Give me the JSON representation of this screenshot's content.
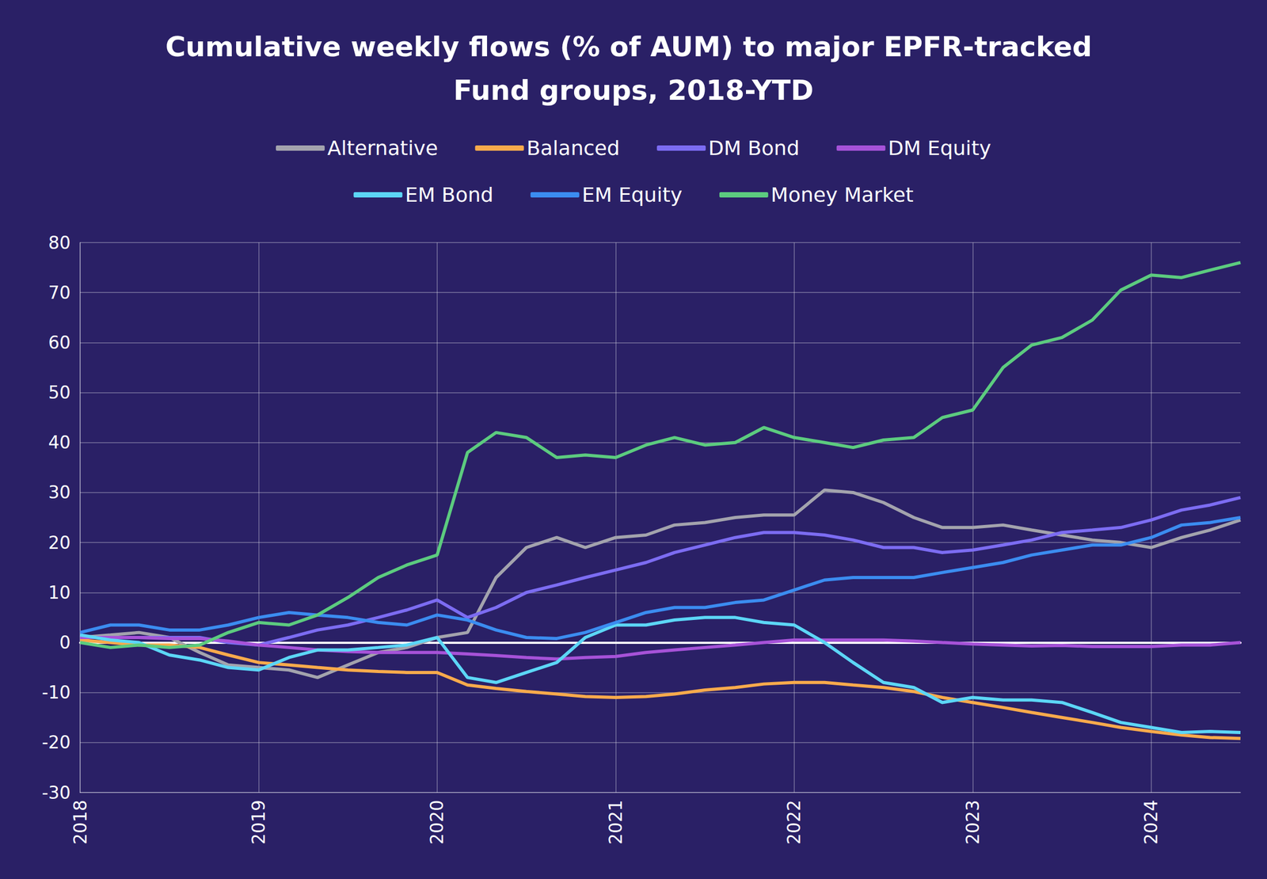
{
  "chart_data": {
    "type": "line",
    "title": "Cumulative weekly flows (% of AUM) to major EPFR-tracked Fund groups, 2018-YTD",
    "x": [
      2018,
      2018.17,
      2018.33,
      2018.5,
      2018.67,
      2018.83,
      2019,
      2019.17,
      2019.33,
      2019.5,
      2019.67,
      2019.83,
      2020,
      2020.17,
      2020.33,
      2020.5,
      2020.67,
      2020.83,
      2021,
      2021.17,
      2021.33,
      2021.5,
      2021.67,
      2021.83,
      2022,
      2022.17,
      2022.33,
      2022.5,
      2022.67,
      2022.83,
      2023,
      2023.17,
      2023.33,
      2023.5,
      2023.67,
      2023.83,
      2024,
      2024.17,
      2024.33,
      2024.5
    ],
    "xlim": [
      2018,
      2024.5
    ],
    "xticks": [
      2018,
      2019,
      2020,
      2021,
      2022,
      2023,
      2024
    ],
    "ylim": [
      -30,
      80
    ],
    "yticks": [
      -30,
      -20,
      -10,
      0,
      10,
      20,
      30,
      40,
      50,
      60,
      70,
      80
    ],
    "grid": true,
    "legend": "top",
    "series": [
      {
        "name": "Alternative",
        "color": "#a3a3ad",
        "values": [
          1,
          1.5,
          2,
          1,
          -2,
          -4.5,
          -5,
          -5.5,
          -7,
          -4.5,
          -2,
          -1,
          1,
          2,
          13,
          19,
          21,
          19,
          21,
          21.5,
          23.5,
          24,
          25,
          25.5,
          25.5,
          30.5,
          30,
          28,
          25,
          23,
          23,
          23.5,
          22.5,
          21.5,
          20.5,
          20,
          19,
          21,
          22.5,
          24.5
        ]
      },
      {
        "name": "Balanced",
        "color": "#f8aa4c",
        "values": [
          0.5,
          0,
          -0.5,
          -0.5,
          -1,
          -2.5,
          -4,
          -4.5,
          -5,
          -5.5,
          -5.8,
          -6,
          -6,
          -8.5,
          -9.2,
          -9.8,
          -10.3,
          -10.8,
          -11,
          -10.8,
          -10.3,
          -9.5,
          -9,
          -8.3,
          -8,
          -8,
          -8.5,
          -9,
          -9.8,
          -11,
          -12,
          -13,
          -14,
          -15,
          -16,
          -17,
          -17.8,
          -18.5,
          -19,
          -19.2
        ]
      },
      {
        "name": "DM Bond",
        "color": "#7c6cf2",
        "values": [
          1,
          1,
          1,
          1,
          1,
          0,
          -0.5,
          1,
          2.5,
          3.5,
          5,
          6.5,
          8.5,
          5,
          7,
          10,
          11.5,
          13,
          14.5,
          16,
          18,
          19.5,
          21,
          22,
          22,
          21.5,
          20.5,
          19,
          19,
          18,
          18.5,
          19.5,
          20.5,
          22,
          22.5,
          23,
          24.5,
          26.5,
          27.5,
          29
        ]
      },
      {
        "name": "DM Equity",
        "color": "#a652d8",
        "values": [
          1,
          1,
          1,
          0.8,
          0.8,
          0.3,
          -0.5,
          -1,
          -1.5,
          -1.8,
          -2,
          -2,
          -2,
          -2.3,
          -2.6,
          -3,
          -3.3,
          -3,
          -2.8,
          -2,
          -1.5,
          -1,
          -0.5,
          0,
          0.5,
          0.5,
          0.5,
          0.5,
          0.3,
          0,
          -0.3,
          -0.5,
          -0.7,
          -0.6,
          -0.8,
          -0.8,
          -0.8,
          -0.5,
          -0.5,
          0
        ]
      },
      {
        "name": "EM Bond",
        "color": "#5cd6f6",
        "values": [
          1.5,
          0.5,
          0,
          -2.5,
          -3.5,
          -5,
          -5.5,
          -3,
          -1.5,
          -1.5,
          -1,
          -0.5,
          1,
          -7,
          -8,
          -6,
          -4,
          1,
          3.5,
          3.5,
          4.5,
          5,
          5,
          4,
          3.5,
          0,
          -4,
          -8,
          -9,
          -12,
          -11,
          -11.5,
          -11.5,
          -12,
          -14,
          -16,
          -17,
          -18,
          -17.8,
          -18
        ]
      },
      {
        "name": "EM Equity",
        "color": "#3b8cf0",
        "values": [
          2,
          3.5,
          3.5,
          2.5,
          2.5,
          3.5,
          5,
          6,
          5.5,
          5,
          4,
          3.5,
          5.5,
          4.5,
          2.5,
          1,
          0.8,
          2,
          4,
          6,
          7,
          7,
          8,
          8.5,
          10.5,
          12.5,
          13,
          13,
          13,
          14,
          15,
          16,
          17.5,
          18.5,
          19.5,
          19.5,
          21,
          23.5,
          24,
          25
        ]
      },
      {
        "name": "Money Market",
        "color": "#5ccb7f",
        "values": [
          0,
          -1,
          -0.5,
          -1,
          -0.5,
          2,
          4,
          3.5,
          5.5,
          9,
          13,
          15.5,
          17.5,
          38,
          42,
          41,
          37,
          37.5,
          37,
          39.5,
          41,
          39.5,
          40,
          43,
          41,
          40,
          39,
          40.5,
          41,
          45,
          46.5,
          55,
          59.5,
          61,
          64.5,
          70.5,
          73.5,
          73,
          74.5,
          76
        ]
      }
    ]
  }
}
